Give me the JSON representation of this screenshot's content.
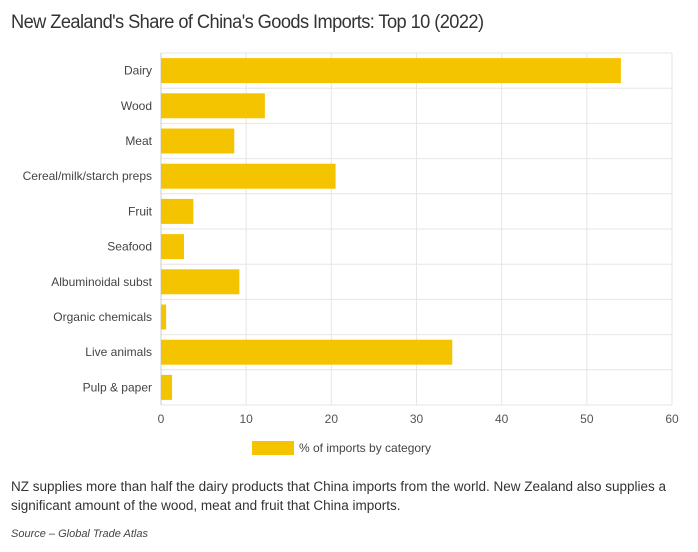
{
  "title": "New Zealand's Share of China's Goods Imports: Top 10 (2022)",
  "chart_data": {
    "type": "bar",
    "orientation": "horizontal",
    "categories": [
      "Dairy",
      "Wood",
      "Meat",
      "Cereal/milk/starch preps",
      "Fruit",
      "Seafood",
      "Albuminoidal subst",
      "Organic chemicals",
      "Live animals",
      "Pulp & paper"
    ],
    "series": [
      {
        "name": "% of imports by category",
        "values": [
          54,
          12.2,
          8.6,
          20.5,
          3.8,
          2.7,
          9.2,
          0.6,
          34.2,
          1.3
        ],
        "color": "#f5c400"
      }
    ],
    "xlim": [
      0,
      60
    ],
    "xticks": [
      "0",
      "10",
      "20",
      "30",
      "40",
      "50",
      "60"
    ],
    "grid": true,
    "legend_position": "bottom"
  },
  "caption": "NZ supplies more than half the dairy products that China imports from the world. New Zealand also supplies a significant amount of the wood, meat and fruit that China imports.",
  "source": "Source – Global Trade Atlas"
}
